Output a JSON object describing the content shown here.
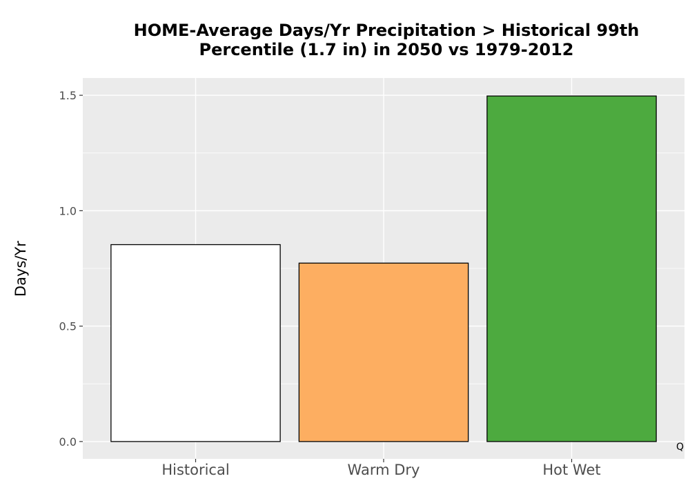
{
  "chart_data": {
    "type": "bar",
    "title": "HOME-Average Days/Yr Precipitation > Historical 99th Percentile (1.7 in) in 2050 vs 1979-2012",
    "title_lines": [
      "HOME-Average Days/Yr Precipitation > Historical 99th",
      "Percentile (1.7 in) in 2050 vs 1979-2012"
    ],
    "xlabel": "",
    "ylabel": "Days/Yr",
    "categories": [
      "Historical",
      "Warm Dry",
      "Hot Wet"
    ],
    "values": [
      0.853,
      0.773,
      1.497
    ],
    "bar_colors": [
      "#ffffff",
      "#fdae61",
      "#4daa3f"
    ],
    "ylim": [
      -0.075,
      1.575
    ],
    "yticks": [
      0.0,
      0.5,
      1.0,
      1.5
    ],
    "ytick_labels": [
      "0.0",
      "0.5",
      "1.0",
      "1.5"
    ],
    "grid": true,
    "panel_background": "#ebebeb",
    "corner_mark": "Q"
  }
}
